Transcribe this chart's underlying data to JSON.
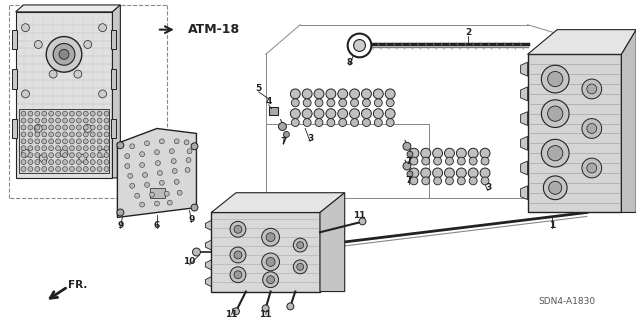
{
  "background_color": "#ffffff",
  "line_color": "#222222",
  "gray1": "#d8d8d8",
  "gray2": "#b8b8b8",
  "gray3": "#888888",
  "gray4": "#555555",
  "dashed_color": "#666666",
  "atm_label": "ATM-18",
  "fr_label": "FR.",
  "diagram_code": "SDN4-A1830",
  "figsize": [
    6.4,
    3.19
  ],
  "dpi": 100
}
